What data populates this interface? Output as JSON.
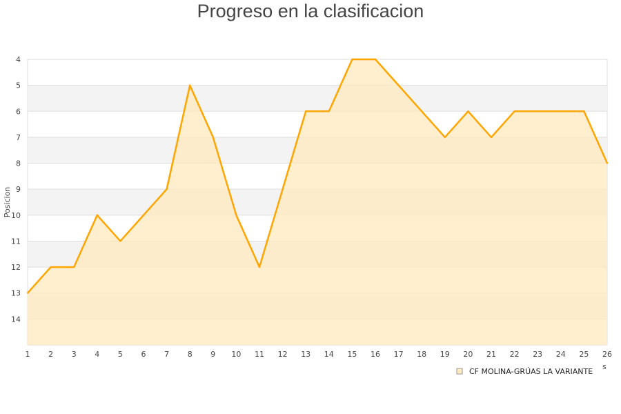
{
  "chart_data": {
    "type": "area",
    "title": "Progreso en la clasificacion",
    "ylabel": "Posicion",
    "xlabel_fragment": "s",
    "x": [
      1,
      2,
      3,
      4,
      5,
      6,
      7,
      8,
      9,
      10,
      11,
      12,
      13,
      14,
      15,
      16,
      17,
      18,
      19,
      20,
      21,
      22,
      23,
      24,
      25,
      26
    ],
    "y_ticks": [
      4,
      5,
      6,
      7,
      8,
      9,
      10,
      11,
      12,
      13,
      14
    ],
    "ylim": [
      15,
      4
    ],
    "y_inverted": true,
    "grid": true,
    "legend_position": "bottom-right",
    "series": [
      {
        "name": "CF MOLINA-GRÚAS LA VARIANTE",
        "values": [
          13,
          12,
          12,
          10,
          11,
          10,
          9,
          5,
          7,
          10,
          12,
          9,
          6,
          6,
          4,
          4,
          5,
          6,
          7,
          6,
          7,
          6,
          6,
          6,
          6,
          8
        ],
        "color": "#FFA500",
        "fill": "#FFE9BF"
      }
    ]
  }
}
